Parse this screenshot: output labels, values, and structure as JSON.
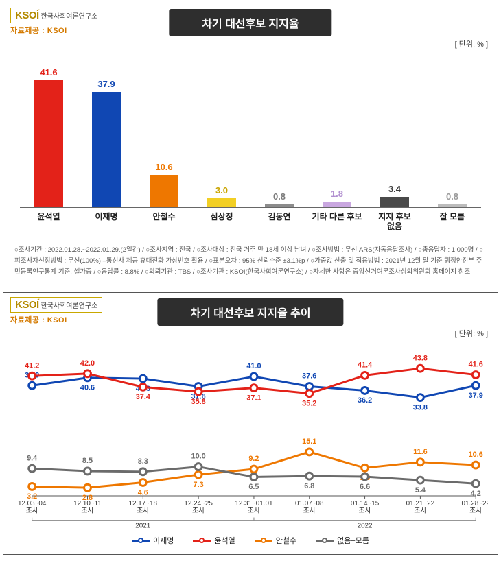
{
  "common": {
    "logo_main": "KSOÍ",
    "logo_sub": "한국사회여론연구소",
    "source": "자료제공 : KSOI",
    "unit": "[ 단위: % ]"
  },
  "bar_panel": {
    "title": "차기 대선후보 지지율",
    "ylim": [
      0,
      45
    ],
    "categories": [
      "윤석열",
      "이재명",
      "안철수",
      "심상정",
      "김동연",
      "기타 다른 후보",
      "지지 후보\n없음",
      "잘 모름"
    ],
    "values": [
      41.6,
      37.9,
      10.6,
      3.0,
      0.8,
      1.8,
      3.4,
      0.8
    ],
    "bar_colors": [
      "#e32219",
      "#1047b3",
      "#ee7700",
      "#f2cf24",
      "#8c8c8c",
      "#c9a7e0",
      "#4a4a4a",
      "#bcbcbc"
    ],
    "label_colors": [
      "#e32219",
      "#1047b3",
      "#ee7700",
      "#c9a400",
      "#7a7a7a",
      "#b18fd0",
      "#3a3a3a",
      "#9a9a9a"
    ],
    "meta": "○조사기간 : 2022.01.28.~2022.01.29.(2일간) / ○조사지역 : 전국 / ○조사대상 : 전국 거주 만 18세 이상 남녀 / ○조사방법 : 무선 ARS(자동응답조사) / ○총응답자 : 1,000명 / ○피조사자선정방법 : 무선(100%) –통신사 제공 휴대전화 가상번호 활용 / ○표본오차 : 95% 신뢰수준 ±3.1%p / ○가중값 산출 및 적용방법 : 2021년 12월 말 기준 행정안전부 주민등록인구통계 기준, 셀가중 / ○응답률 : 8.8% / ○의뢰기관 : TBS / ○조사기관 : KSOI(한국사회여론연구소) / ○자세한 사항은 중앙선거여론조사심의위원회 홈페이지 참조"
  },
  "line_panel": {
    "title": "차기 대선후보 지지율 추이",
    "x_labels": [
      "12.03~04\n조사",
      "12.10~11\n조사",
      "12.17~18\n조사",
      "12.24~25\n조사",
      "12.31~01.01\n조사",
      "01.07~08\n조사",
      "01.14~15\n조사",
      "01.21~22\n조사",
      "01.28~29\n조사"
    ],
    "year_2021_span": [
      0,
      4
    ],
    "year_2022_span": [
      4,
      8
    ],
    "year_2021": "2021",
    "year_2022": "2022",
    "ylim": [
      0,
      48
    ],
    "series": [
      {
        "name": "이재명",
        "color": "#1047b3",
        "values": [
          37.9,
          40.6,
          40.3,
          37.6,
          41.0,
          37.6,
          36.2,
          33.8,
          37.9
        ]
      },
      {
        "name": "윤석열",
        "color": "#e32219",
        "values": [
          41.2,
          42.0,
          37.4,
          35.8,
          37.1,
          35.2,
          41.4,
          43.8,
          41.6
        ]
      },
      {
        "name": "안철수",
        "color": "#ee7700",
        "values": [
          3.2,
          2.8,
          4.6,
          7.3,
          9.2,
          15.1,
          9.6,
          11.6,
          10.6
        ]
      },
      {
        "name": "없음+모름",
        "color": "#6b6b6b",
        "values": [
          9.4,
          8.5,
          8.3,
          10.0,
          6.5,
          6.8,
          6.6,
          5.4,
          4.2
        ]
      }
    ],
    "label_offsets": [
      [
        -12,
        12,
        12,
        12,
        -12,
        -12,
        12,
        12,
        12
      ],
      [
        -12,
        -12,
        12,
        12,
        12,
        12,
        -12,
        -12,
        -12
      ],
      [
        12,
        12,
        12,
        12,
        -12,
        -12,
        12,
        -12,
        -12
      ],
      [
        -12,
        -12,
        -12,
        -12,
        12,
        12,
        12,
        12,
        12
      ]
    ]
  }
}
